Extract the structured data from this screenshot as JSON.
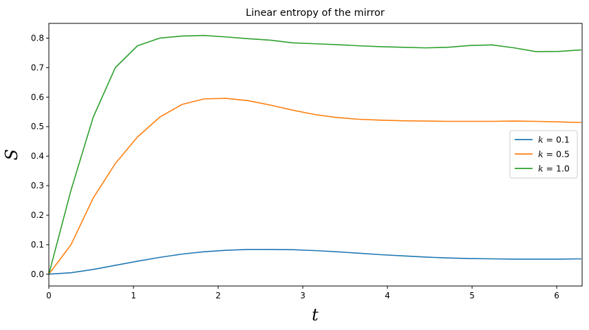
{
  "chart_data": {
    "type": "line",
    "title": "Linear entropy of the mirror",
    "xlabel": "t",
    "ylabel": "S",
    "xlim": [
      0,
      6.3
    ],
    "ylim": [
      -0.04,
      0.85
    ],
    "xticks": [
      0,
      1,
      2,
      3,
      4,
      5,
      6
    ],
    "xtick_labels": [
      "0",
      "1",
      "2",
      "3",
      "4",
      "5",
      "6"
    ],
    "yticks": [
      0.0,
      0.1,
      0.2,
      0.3,
      0.4,
      0.5,
      0.6,
      0.7,
      0.8
    ],
    "ytick_labels": [
      "0.0",
      "0.1",
      "0.2",
      "0.3",
      "0.4",
      "0.5",
      "0.6",
      "0.7",
      "0.8"
    ],
    "grid": false,
    "legend_position": "center-right",
    "x": [
      0,
      0.262,
      0.524,
      0.785,
      1.047,
      1.309,
      1.571,
      1.833,
      2.094,
      2.356,
      2.618,
      2.88,
      3.142,
      3.403,
      3.665,
      3.927,
      4.189,
      4.451,
      4.712,
      4.974,
      5.236,
      5.498,
      5.76,
      6.021,
      6.283
    ],
    "series": [
      {
        "name": "k = 0.1",
        "label_var": "k",
        "label_value": "= 0.1",
        "color": "#1f77b4",
        "values": [
          0.0,
          0.005,
          0.016,
          0.03,
          0.044,
          0.057,
          0.068,
          0.076,
          0.081,
          0.084,
          0.084,
          0.083,
          0.08,
          0.076,
          0.071,
          0.066,
          0.062,
          0.058,
          0.055,
          0.053,
          0.052,
          0.051,
          0.051,
          0.051,
          0.052
        ]
      },
      {
        "name": "k = 0.5",
        "label_var": "k",
        "label_value": "= 0.5",
        "color": "#ff7f0e",
        "values": [
          0.0,
          0.1,
          0.258,
          0.375,
          0.465,
          0.532,
          0.575,
          0.594,
          0.596,
          0.588,
          0.573,
          0.556,
          0.541,
          0.531,
          0.525,
          0.522,
          0.52,
          0.519,
          0.518,
          0.518,
          0.518,
          0.519,
          0.518,
          0.516,
          0.514
        ]
      },
      {
        "name": "k = 1.0",
        "label_var": "k",
        "label_value": "= 1.0",
        "color": "#2ca02c",
        "values": [
          0.0,
          0.285,
          0.532,
          0.7,
          0.774,
          0.8,
          0.807,
          0.809,
          0.804,
          0.798,
          0.793,
          0.784,
          0.781,
          0.778,
          0.774,
          0.771,
          0.769,
          0.767,
          0.769,
          0.775,
          0.777,
          0.767,
          0.754,
          0.755,
          0.76
        ]
      }
    ]
  }
}
